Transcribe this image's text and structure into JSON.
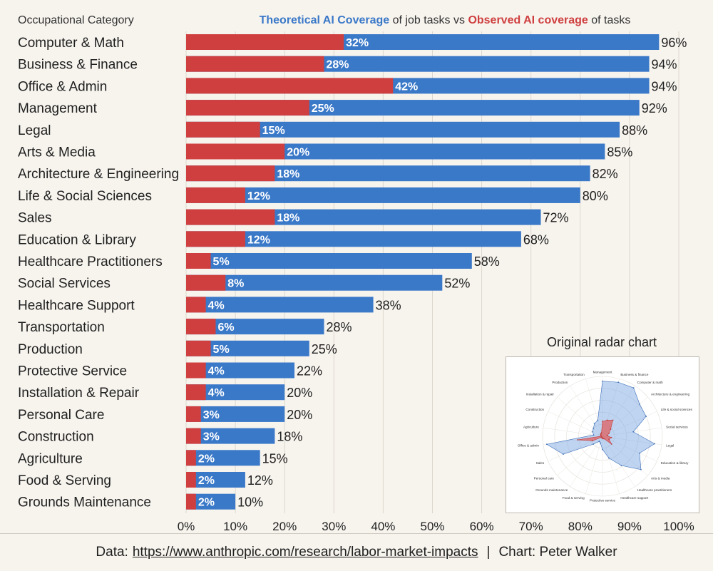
{
  "chart_data": [
    {
      "type": "bar",
      "title": {
        "theoretical": "Theoretical AI Coverage",
        "middle": " of job tasks vs ",
        "observed": "Observed AI coverage",
        "suffix": " of tasks"
      },
      "category_header": "Occupational Category",
      "categories": [
        "Computer & Math",
        "Business & Finance",
        "Office & Admin",
        "Management",
        "Legal",
        "Arts & Media",
        "Architecture & Engineering",
        "Life & Social Sciences",
        "Sales",
        "Education & Library",
        "Healthcare Practitioners",
        "Social Services",
        "Healthcare Support",
        "Transportation",
        "Production",
        "Protective Service",
        "Installation & Repair",
        "Personal Care",
        "Construction",
        "Agriculture",
        "Food & Serving",
        "Grounds Maintenance"
      ],
      "series": [
        {
          "name": "Theoretical AI Coverage",
          "color": "#4a7fd4",
          "values": [
            96,
            94,
            94,
            92,
            88,
            85,
            82,
            80,
            72,
            68,
            58,
            52,
            38,
            28,
            25,
            22,
            20,
            20,
            18,
            15,
            12,
            10
          ]
        },
        {
          "name": "Observed AI coverage",
          "color": "#d64b4b",
          "values": [
            32,
            28,
            42,
            25,
            15,
            20,
            18,
            12,
            18,
            12,
            5,
            8,
            4,
            6,
            5,
            4,
            4,
            3,
            3,
            2,
            2,
            2
          ]
        }
      ],
      "x_ticks": [
        "0%",
        "10%",
        "20%",
        "30%",
        "40%",
        "50%",
        "60%",
        "70%",
        "80%",
        "90%",
        "100%"
      ],
      "xlim": [
        0,
        100
      ],
      "grid": true,
      "colors": {
        "theoretical": "#3a78c8",
        "observed": "#cf3f3f"
      }
    },
    {
      "type": "radar",
      "title": "Original radar chart",
      "axes": [
        "Management",
        "Business & finance",
        "Computer & math",
        "Architecture & engineering",
        "Life & social sciences",
        "Social services",
        "Legal",
        "Education & library",
        "Arts & media",
        "Healthcare practitioners",
        "Healthcare support",
        "Protective service",
        "Food & serving",
        "Grounds maintenance",
        "Personal care",
        "Sales",
        "Office & admin",
        "Agriculture",
        "Construction",
        "Installation & repair",
        "Production",
        "Transportation"
      ],
      "series": [
        {
          "name": "Theoretical",
          "color": "#6f9fe0",
          "values": [
            92,
            94,
            96,
            82,
            80,
            52,
            88,
            68,
            85,
            58,
            38,
            22,
            12,
            10,
            20,
            72,
            94,
            15,
            18,
            20,
            25,
            28
          ]
        },
        {
          "name": "Observed",
          "color": "#e06060",
          "values": [
            25,
            28,
            32,
            18,
            12,
            8,
            15,
            12,
            20,
            5,
            4,
            4,
            2,
            2,
            3,
            18,
            42,
            2,
            3,
            4,
            5,
            6
          ]
        }
      ]
    }
  ],
  "footer": {
    "data_prefix": "Data:",
    "url": "https://www.anthropic.com/research/labor-market-impacts",
    "separator": "|",
    "credit": "Chart: Peter Walker"
  }
}
